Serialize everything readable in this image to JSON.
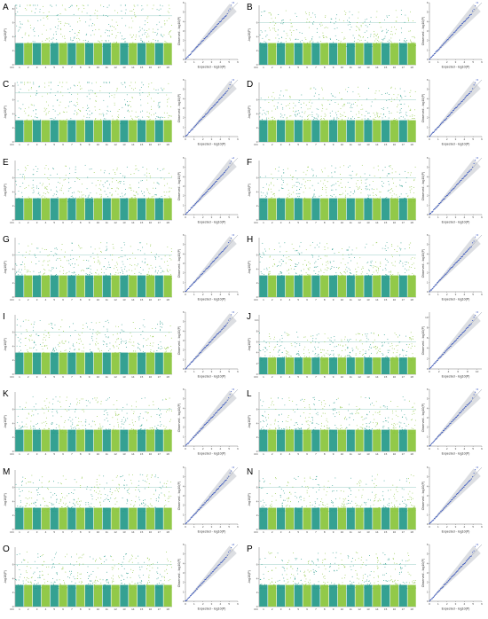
{
  "figure": {
    "colors": {
      "odd_chr": "#2a9c8c",
      "even_chr": "#8cc63f",
      "qq_points": "#2b4bbd",
      "qq_band": "#9aa0ad",
      "threshold": "#7fc2b6",
      "axis": "#555555"
    }
  },
  "chart_data": [
    {
      "label": "A",
      "type": "scatter",
      "kind": "manhattan+qq",
      "chromosomes": [
        "Chr",
        "1",
        "2",
        "3",
        "4",
        "5",
        "6",
        "7",
        "8",
        "9",
        "10",
        "11",
        "12",
        "13",
        "14",
        "15",
        "16",
        "17",
        "18"
      ],
      "manhattan": {
        "ylabel": "-log10(P)",
        "yticks": [
          "0",
          "2",
          "4",
          "6",
          "8"
        ],
        "ylim": [
          0,
          8.5
        ],
        "threshold": 7
      },
      "qq": {
        "xlabel": "Expected - log10(P)",
        "ylabel": "Observed - log10(P)",
        "ticks": [
          "0",
          "1",
          "2",
          "3",
          "4",
          "5",
          "6"
        ],
        "lim": [
          0,
          6
        ]
      }
    },
    {
      "label": "B",
      "type": "scatter",
      "kind": "manhattan+qq",
      "chromosomes": [
        "Chr",
        "1",
        "2",
        "3",
        "4",
        "5",
        "6",
        "7",
        "8",
        "9",
        "10",
        "11",
        "12",
        "13",
        "14",
        "15",
        "16",
        "17",
        "18"
      ],
      "manhattan": {
        "ylabel": "-log10(P)",
        "yticks": [
          "0",
          "2",
          "4",
          "6"
        ],
        "ylim": [
          0,
          8.5
        ],
        "threshold": 6
      },
      "qq": {
        "xlabel": "Expected - log10(P)",
        "ylabel": "Observed - log10(P)",
        "ticks": [
          "0",
          "1",
          "2",
          "3",
          "4",
          "5",
          "6"
        ],
        "lim": [
          0,
          6
        ]
      }
    },
    {
      "label": "C",
      "type": "scatter",
      "kind": "manhattan+qq",
      "chromosomes": [
        "Chr",
        "1",
        "2",
        "3",
        "4",
        "5",
        "6",
        "7",
        "8",
        "9",
        "10",
        "11",
        "12",
        "13",
        "14",
        "15",
        "16",
        "17",
        "18"
      ],
      "manhattan": {
        "ylabel": "-log10(P)",
        "yticks": [
          "0",
          "2",
          "4",
          "6",
          "8"
        ],
        "ylim": [
          0,
          8.5
        ],
        "threshold": 7
      },
      "qq": {
        "xlabel": "Expected - log10(P)",
        "ylabel": "Observed - log10(P)",
        "ticks": [
          "0",
          "1",
          "2",
          "3",
          "4",
          "5",
          "6"
        ],
        "lim": [
          0,
          6
        ]
      }
    },
    {
      "label": "D",
      "type": "scatter",
      "kind": "manhattan+qq",
      "chromosomes": [
        "Chr",
        "1",
        "2",
        "3",
        "4",
        "5",
        "6",
        "7",
        "8",
        "9",
        "10",
        "11",
        "12",
        "13",
        "14",
        "15",
        "16",
        "17",
        "18"
      ],
      "manhattan": {
        "ylabel": "-log10(P)",
        "yticks": [
          "0",
          "2",
          "4",
          "6"
        ],
        "ylim": [
          0,
          8.5
        ],
        "threshold": 6
      },
      "qq": {
        "xlabel": "Expected - log10(P)",
        "ylabel": "Observed - log10(P)",
        "ticks": [
          "0",
          "1",
          "2",
          "3",
          "4",
          "5",
          "6"
        ],
        "lim": [
          0,
          6
        ]
      }
    },
    {
      "label": "E",
      "type": "scatter",
      "kind": "manhattan+qq",
      "chromosomes": [
        "Chr",
        "1",
        "2",
        "3",
        "4",
        "5",
        "6",
        "7",
        "8",
        "9",
        "10",
        "11",
        "12",
        "13",
        "14",
        "15",
        "16",
        "17",
        "18"
      ],
      "manhattan": {
        "ylabel": "-log10(P)",
        "yticks": [
          "0",
          "2",
          "4",
          "6"
        ],
        "ylim": [
          0,
          8.5
        ],
        "threshold": 6
      },
      "qq": {
        "xlabel": "Expected - log10(P)",
        "ylabel": "Observed - log10(P)",
        "ticks": [
          "0",
          "1",
          "2",
          "3",
          "4",
          "5",
          "6"
        ],
        "lim": [
          0,
          6
        ]
      }
    },
    {
      "label": "F",
      "type": "scatter",
      "kind": "manhattan+qq",
      "chromosomes": [
        "Chr",
        "1",
        "2",
        "3",
        "4",
        "5",
        "6",
        "7",
        "8",
        "9",
        "10",
        "11",
        "12",
        "13",
        "14",
        "15",
        "16",
        "17",
        "18"
      ],
      "manhattan": {
        "ylabel": "-log10(P)",
        "yticks": [
          "0",
          "2",
          "4",
          "6"
        ],
        "ylim": [
          0,
          8.5
        ],
        "threshold": 6
      },
      "qq": {
        "xlabel": "Expected - log10(P)",
        "ylabel": "Observed - log10(P)",
        "ticks": [
          "0",
          "1",
          "2",
          "3",
          "4",
          "5",
          "6"
        ],
        "lim": [
          0,
          6
        ]
      }
    },
    {
      "label": "G",
      "type": "scatter",
      "kind": "manhattan+qq",
      "chromosomes": [
        "Chr",
        "1",
        "2",
        "3",
        "4",
        "5",
        "6",
        "7",
        "8",
        "9",
        "10",
        "11",
        "12",
        "13",
        "14",
        "15",
        "16",
        "17",
        "18"
      ],
      "manhattan": {
        "ylabel": "-log10(P)",
        "yticks": [
          "0",
          "2",
          "4",
          "6"
        ],
        "ylim": [
          0,
          8.5
        ],
        "threshold": 6
      },
      "qq": {
        "xlabel": "Expected - log10(P)",
        "ylabel": "Observed - log10(P)",
        "ticks": [
          "0",
          "1",
          "2",
          "3",
          "4",
          "5",
          "6"
        ],
        "lim": [
          0,
          6
        ]
      }
    },
    {
      "label": "H",
      "type": "scatter",
      "kind": "manhattan+qq",
      "chromosomes": [
        "Chr",
        "1",
        "2",
        "3",
        "4",
        "5",
        "6",
        "7",
        "8",
        "9",
        "10",
        "11",
        "12",
        "13",
        "14",
        "15",
        "16",
        "17",
        "18"
      ],
      "manhattan": {
        "ylabel": "-log10(P)",
        "yticks": [
          "0",
          "2",
          "4",
          "6"
        ],
        "ylim": [
          0,
          8.5
        ],
        "threshold": 6
      },
      "qq": {
        "xlabel": "Expected - log10(P)",
        "ylabel": "Observed - log10(P)",
        "ticks": [
          "0",
          "1",
          "2",
          "3",
          "4",
          "5",
          "6"
        ],
        "lim": [
          0,
          6
        ]
      }
    },
    {
      "label": "I",
      "type": "scatter",
      "kind": "manhattan+qq",
      "chromosomes": [
        "Chr",
        "1",
        "2",
        "3",
        "4",
        "5",
        "6",
        "7",
        "8",
        "9",
        "10",
        "11",
        "12",
        "13",
        "14",
        "15",
        "16",
        "17",
        "18"
      ],
      "manhattan": {
        "ylabel": "-log10(P)",
        "yticks": [
          "0",
          "2",
          "4",
          "6"
        ],
        "ylim": [
          0,
          8.5
        ],
        "threshold": 6
      },
      "qq": {
        "xlabel": "Expected - log10(P)",
        "ylabel": "Observed - log10(P)",
        "ticks": [
          "0",
          "1",
          "2",
          "3",
          "4",
          "5",
          "6"
        ],
        "lim": [
          0,
          6
        ]
      }
    },
    {
      "label": "J",
      "type": "scatter",
      "kind": "manhattan+qq",
      "chromosomes": [
        "Chr",
        "1",
        "2",
        "3",
        "4",
        "5",
        "6",
        "7",
        "8",
        "9",
        "10",
        "11",
        "12",
        "13",
        "14",
        "15",
        "16",
        "17",
        "18"
      ],
      "manhattan": {
        "ylabel": "-log10(P)",
        "yticks": [
          "0",
          "2",
          "4",
          "6",
          "8",
          "10"
        ],
        "ylim": [
          0,
          11
        ],
        "threshold": 6
      },
      "qq": {
        "xlabel": "Expected - log10(P)",
        "ylabel": "Observed - log10(P)",
        "ticks": [
          "0",
          "2",
          "4",
          "6",
          "8",
          "10"
        ],
        "lim": [
          0,
          11
        ]
      }
    },
    {
      "label": "K",
      "type": "scatter",
      "kind": "manhattan+qq",
      "chromosomes": [
        "Chr",
        "1",
        "2",
        "3",
        "4",
        "5",
        "6",
        "7",
        "8",
        "9",
        "10",
        "11",
        "12",
        "13",
        "14",
        "15",
        "16",
        "17",
        "18"
      ],
      "manhattan": {
        "ylabel": "-log10(P)",
        "yticks": [
          "0",
          "2",
          "4",
          "6"
        ],
        "ylim": [
          0,
          8.5
        ],
        "threshold": 6
      },
      "qq": {
        "xlabel": "Expected - log10(P)",
        "ylabel": "Observed - log10(P)",
        "ticks": [
          "0",
          "1",
          "2",
          "3",
          "4",
          "5",
          "6"
        ],
        "lim": [
          0,
          6
        ]
      }
    },
    {
      "label": "L",
      "type": "scatter",
      "kind": "manhattan+qq",
      "chromosomes": [
        "Chr",
        "1",
        "2",
        "3",
        "4",
        "5",
        "6",
        "7",
        "8",
        "9",
        "10",
        "11",
        "12",
        "13",
        "14",
        "15",
        "16",
        "17",
        "18"
      ],
      "manhattan": {
        "ylabel": "-log10(P)",
        "yticks": [
          "0",
          "2",
          "4",
          "6"
        ],
        "ylim": [
          0,
          8.5
        ],
        "threshold": 6
      },
      "qq": {
        "xlabel": "Expected - log10(P)",
        "ylabel": "Observed - log10(P)",
        "ticks": [
          "0",
          "1",
          "2",
          "3",
          "4",
          "5",
          "6"
        ],
        "lim": [
          0,
          6
        ]
      }
    },
    {
      "label": "M",
      "type": "scatter",
      "kind": "manhattan+qq",
      "chromosomes": [
        "Chr",
        "1",
        "2",
        "3",
        "4",
        "5",
        "6",
        "7",
        "8",
        "9",
        "10",
        "11",
        "12",
        "13",
        "14",
        "15",
        "16",
        "17",
        "18"
      ],
      "manhattan": {
        "ylabel": "-log10(P)",
        "yticks": [
          "0",
          "2",
          "4",
          "6"
        ],
        "ylim": [
          0,
          8.5
        ],
        "threshold": 6
      },
      "qq": {
        "xlabel": "Expected - log10(P)",
        "ylabel": "Observed - log10(P)",
        "ticks": [
          "0",
          "1",
          "2",
          "3",
          "4",
          "5",
          "6"
        ],
        "lim": [
          0,
          6
        ]
      }
    },
    {
      "label": "N",
      "type": "scatter",
      "kind": "manhattan+qq",
      "chromosomes": [
        "Chr",
        "1",
        "2",
        "3",
        "4",
        "5",
        "6",
        "7",
        "8",
        "9",
        "10",
        "11",
        "12",
        "13",
        "14",
        "15",
        "16",
        "17",
        "18"
      ],
      "manhattan": {
        "ylabel": "-log10(P)",
        "yticks": [
          "0",
          "2",
          "4",
          "6"
        ],
        "ylim": [
          0,
          8.5
        ],
        "threshold": 6
      },
      "qq": {
        "xlabel": "Expected - log10(P)",
        "ylabel": "Observed - log10(P)",
        "ticks": [
          "0",
          "1",
          "2",
          "3",
          "4",
          "5",
          "6"
        ],
        "lim": [
          0,
          6
        ]
      }
    },
    {
      "label": "O",
      "type": "scatter",
      "kind": "manhattan+qq",
      "chromosomes": [
        "Chr",
        "1",
        "2",
        "3",
        "4",
        "5",
        "6",
        "7",
        "8",
        "9",
        "10",
        "11",
        "12",
        "13",
        "14",
        "15",
        "16",
        "17",
        "18"
      ],
      "manhattan": {
        "ylabel": "-log10(P)",
        "yticks": [
          "0",
          "2",
          "4",
          "6"
        ],
        "ylim": [
          0,
          8.5
        ],
        "threshold": 6
      },
      "qq": {
        "xlabel": "Expected - log10(P)",
        "ylabel": "Observed - log10(P)",
        "ticks": [
          "0",
          "1",
          "2",
          "3",
          "4",
          "5",
          "6"
        ],
        "lim": [
          0,
          6
        ]
      }
    },
    {
      "label": "P",
      "type": "scatter",
      "kind": "manhattan+qq",
      "chromosomes": [
        "Chr",
        "1",
        "2",
        "3",
        "4",
        "5",
        "6",
        "7",
        "8",
        "9",
        "10",
        "11",
        "12",
        "13",
        "14",
        "15",
        "16",
        "17",
        "18"
      ],
      "manhattan": {
        "ylabel": "-log10(P)",
        "yticks": [
          "0",
          "2",
          "4",
          "6"
        ],
        "ylim": [
          0,
          8.5
        ],
        "threshold": 6
      },
      "qq": {
        "xlabel": "Expected - log10(P)",
        "ylabel": "Observed - log10(P)",
        "ticks": [
          "0",
          "1",
          "2",
          "3",
          "4",
          "5",
          "6"
        ],
        "lim": [
          0,
          6
        ]
      }
    }
  ]
}
